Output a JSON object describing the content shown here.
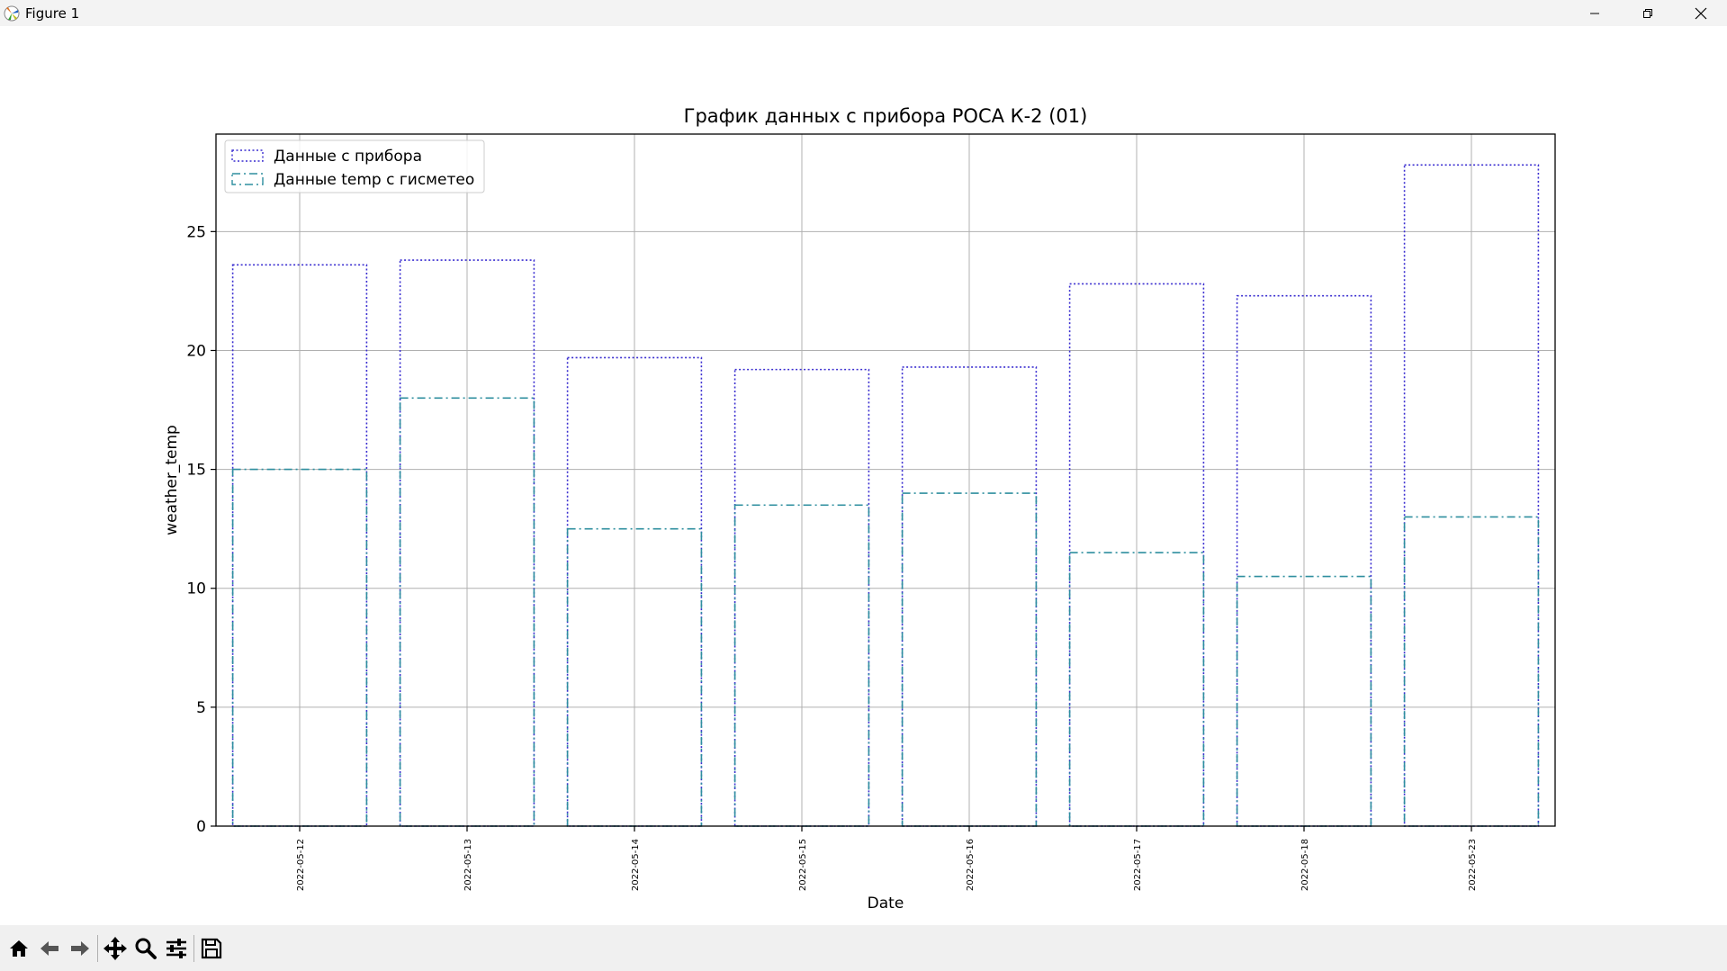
{
  "window": {
    "title": "Figure 1"
  },
  "toolbar": {
    "items": [
      "home-icon",
      "back-arrow-icon",
      "forward-arrow-icon",
      "pan-icon",
      "zoom-icon",
      "configure-subplots-icon",
      "save-icon"
    ]
  },
  "colors": {
    "device_series": "#3b2fd0",
    "gismeteo_series": "#2f8f9f",
    "grid": "#b0b0b0",
    "toolbar_bg": "#f0f0f0"
  },
  "chart_data": {
    "type": "bar",
    "title": "График данных с прибора РОСА К-2 (01)",
    "xlabel": "Date",
    "ylabel": "weather_temp",
    "categories": [
      "2022-05-12",
      "2022-05-13",
      "2022-05-14",
      "2022-05-15",
      "2022-05-16",
      "2022-05-17",
      "2022-05-18",
      "2022-05-23"
    ],
    "series": [
      {
        "name": "Данные с прибора",
        "style": "dotted",
        "values": [
          23.6,
          23.8,
          19.7,
          19.2,
          19.3,
          22.8,
          22.3,
          27.8
        ]
      },
      {
        "name": "Данные temp с гисметео",
        "style": "dashdot",
        "values": [
          15.0,
          18.0,
          12.5,
          13.5,
          14.0,
          11.5,
          10.5,
          13.0
        ]
      }
    ],
    "ylim": [
      0,
      29.1
    ],
    "yticks": [
      0,
      5,
      10,
      15,
      20,
      25
    ],
    "grid": true,
    "legend_position": "upper left"
  }
}
